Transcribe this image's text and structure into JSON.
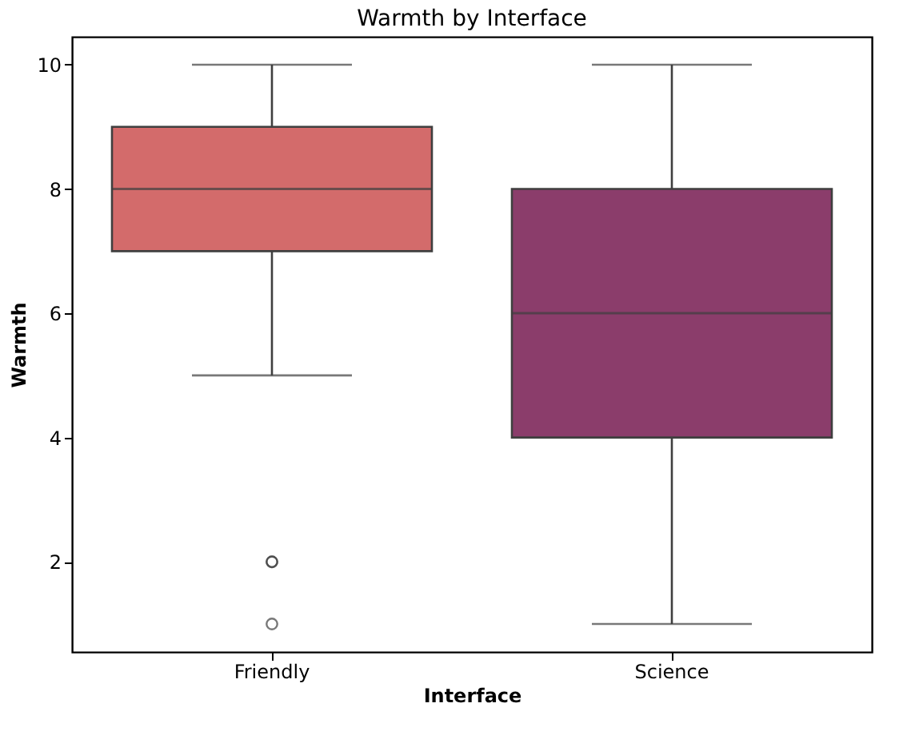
{
  "chart_data": {
    "type": "box",
    "title": "Warmth by Interface",
    "xlabel": "Interface",
    "ylabel": "Warmth",
    "categories": [
      "Friendly",
      "Science"
    ],
    "boxes": [
      {
        "low": 5,
        "q1": 7,
        "median": 8,
        "q3": 9,
        "high": 10,
        "outliers": [
          2,
          2,
          1
        ]
      },
      {
        "low": 1,
        "q1": 4,
        "median": 6,
        "q3": 8,
        "high": 10
      }
    ],
    "colors": [
      "#d36b6b",
      "#8b3d6b"
    ],
    "ylim": [
      0.55,
      10.45
    ],
    "yticks": [
      2,
      4,
      6,
      8,
      10
    ],
    "grid": false
  }
}
